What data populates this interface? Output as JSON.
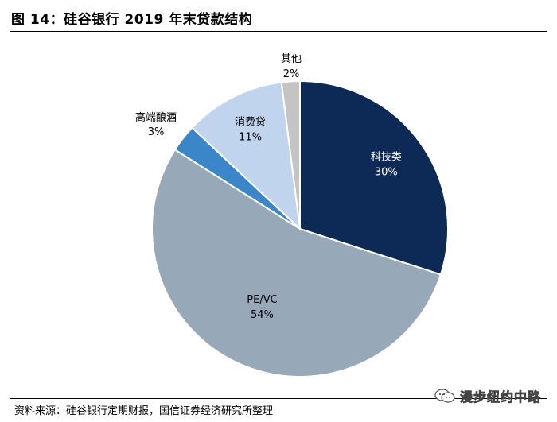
{
  "title": "图 14：硅谷银行 2019 年末贷款结构",
  "source": "资料来源：硅谷银行定期财报，国信证券经济研究所整理",
  "watermark": {
    "text": "漫步纽约中路",
    "icon": "wechat-icon"
  },
  "chart_data": {
    "type": "pie",
    "title": "硅谷银行 2019 年末贷款结构",
    "start_angle_deg": 0,
    "direction": "clockwise",
    "slices": [
      {
        "name": "科技类",
        "value": 30,
        "percent_label": "30%",
        "color": "#0d2a56",
        "text_color": "#ffffff",
        "label_inside": true
      },
      {
        "name": "PE/VC",
        "value": 54,
        "percent_label": "54%",
        "color": "#97a8b9",
        "text_color": "#000000",
        "label_inside": true
      },
      {
        "name": "高端酿酒",
        "value": 3,
        "percent_label": "3%",
        "color": "#3a86c8",
        "text_color": "#000000",
        "label_inside": false
      },
      {
        "name": "消费贷",
        "value": 11,
        "percent_label": "11%",
        "color": "#c1d4ee",
        "text_color": "#000000",
        "label_inside": true
      },
      {
        "name": "其他",
        "value": 2,
        "percent_label": "2%",
        "color": "#c4c4c4",
        "text_color": "#000000",
        "label_inside": false
      }
    ]
  }
}
